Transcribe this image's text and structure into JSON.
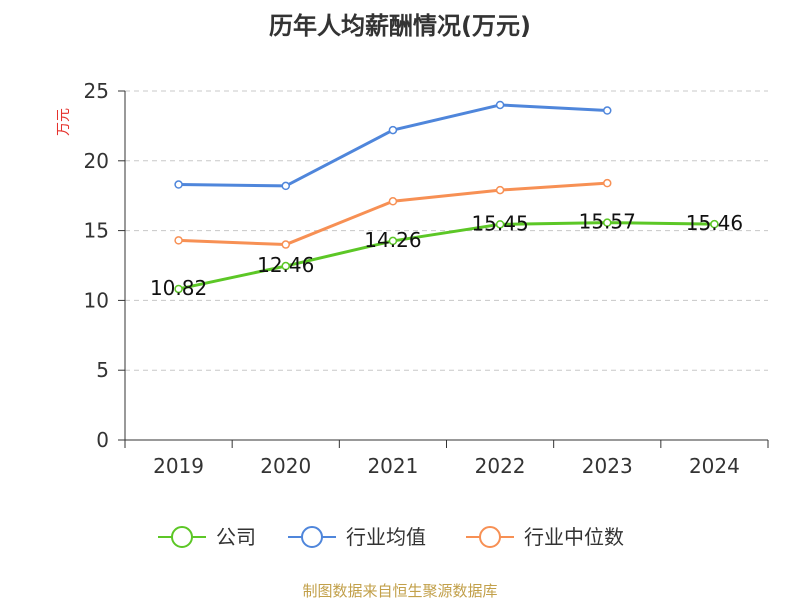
{
  "chart_data": {
    "type": "line",
    "title": "历年人均薪酬情况(万元)",
    "ylabel": "万元",
    "ylim": [
      0,
      25
    ],
    "yticks": [
      0,
      5,
      10,
      15,
      20,
      25
    ],
    "grid": true,
    "legend_position": "bottom",
    "categories": [
      "2019",
      "2020",
      "2021",
      "2022",
      "2023",
      "2024"
    ],
    "series": [
      {
        "name": "公司",
        "color": "#5cc726",
        "values": [
          10.82,
          12.46,
          14.26,
          15.45,
          15.57,
          15.46
        ],
        "labels": [
          "10.82",
          "12.46",
          "14.26",
          "15.45",
          "15.57",
          "15.46"
        ]
      },
      {
        "name": "行业均值",
        "color": "#4f86db",
        "values": [
          18.3,
          18.2,
          22.2,
          24.0,
          23.6,
          null
        ]
      },
      {
        "name": "行业中位数",
        "color": "#f79054",
        "values": [
          14.3,
          14.0,
          17.1,
          17.9,
          18.4,
          null
        ]
      }
    ],
    "ylabel_color": "#e5322d"
  },
  "source": {
    "text": "制图数据来自恒生聚源数据库",
    "color": "#c2a04a"
  }
}
